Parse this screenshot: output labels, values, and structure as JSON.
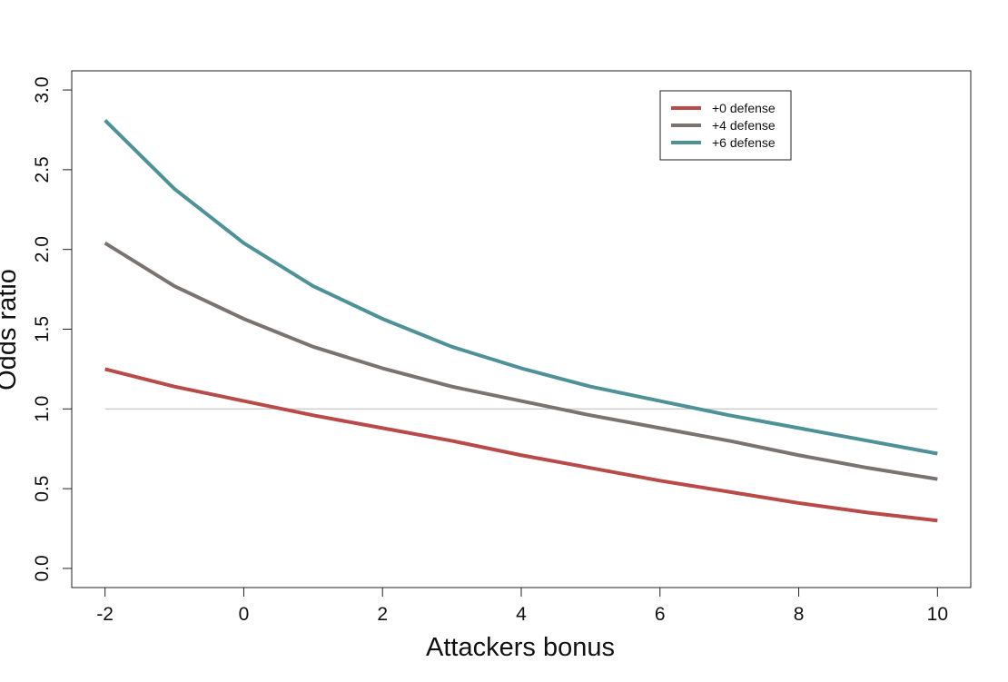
{
  "chart_data": {
    "type": "line",
    "x_label": "Attackers bonus",
    "y_label": "Odds ratio",
    "x": [
      -2,
      -1,
      0,
      1,
      2,
      3,
      4,
      5,
      6,
      7,
      8,
      9,
      10
    ],
    "series": [
      {
        "name": "+0 defense",
        "color": "#b94a4a",
        "values": [
          1.25,
          1.14,
          1.05,
          0.96,
          0.88,
          0.8,
          0.71,
          0.63,
          0.55,
          0.48,
          0.41,
          0.35,
          0.3
        ]
      },
      {
        "name": "+4 defense",
        "color": "#7a7370",
        "values": [
          2.04,
          1.77,
          1.565,
          1.39,
          1.255,
          1.14,
          1.05,
          0.96,
          0.88,
          0.8,
          0.71,
          0.63,
          0.56
        ]
      },
      {
        "name": "+6 defense",
        "color": "#4e9196",
        "values": [
          2.81,
          2.38,
          2.04,
          1.77,
          1.565,
          1.39,
          1.255,
          1.14,
          1.05,
          0.96,
          0.88,
          0.8,
          0.72
        ]
      }
    ],
    "reference_line": 1,
    "xlim": [
      -2.48,
      10.48
    ],
    "ylim": [
      -0.12,
      3.12
    ],
    "xticks": [
      -2,
      0,
      2,
      4,
      6,
      8,
      10
    ],
    "yticks": [
      {
        "value": 0,
        "label": "0.0"
      },
      {
        "value": 0.5,
        "label": "0.5"
      },
      {
        "value": 1,
        "label": "1.0"
      },
      {
        "value": 1.5,
        "label": "1.5"
      },
      {
        "value": 2,
        "label": "2.0"
      },
      {
        "value": 2.5,
        "label": "2.5"
      },
      {
        "value": 3,
        "label": "3.0"
      }
    ],
    "legend": "top-right"
  }
}
